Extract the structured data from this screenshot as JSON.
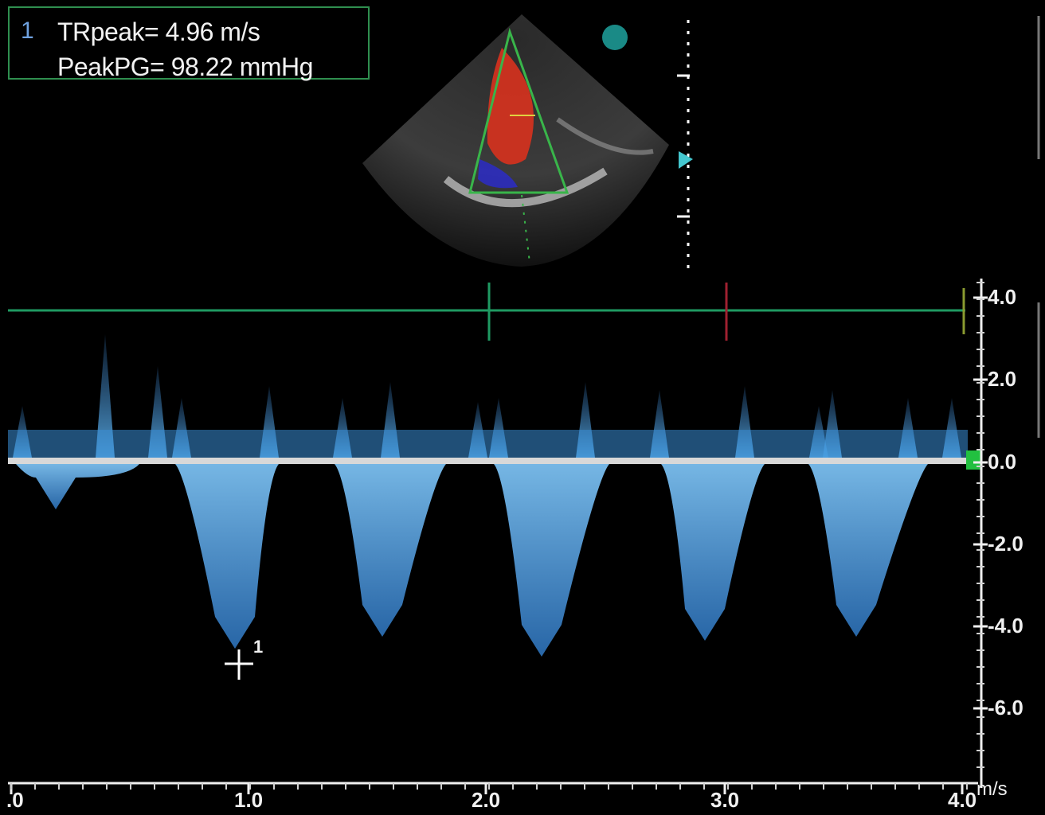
{
  "measurement": {
    "index": "1",
    "tr_peak_label": "TRpeak",
    "tr_peak_value": "4.96 m/s",
    "peak_pg_label": "PeakPG",
    "peak_pg_value": "98.22 mmHg"
  },
  "cursor_marker": "1",
  "velocity_axis": {
    "unit": "m/s",
    "ticks": [
      "4.0",
      "2.0",
      "0.0",
      "-2.0",
      "-4.0",
      "-6.0"
    ]
  },
  "time_axis": {
    "ticks": [
      ".0",
      "1.0",
      "2.0",
      "3.0",
      "4.0"
    ]
  },
  "colors": {
    "spectral": "#4fa6e8",
    "baseline": "#d8d8d8",
    "cursor_line": "#1f9a62",
    "color_flow": "#d8321e",
    "sector_outline": "#39b54a",
    "marker_dot": "#1a8a86"
  }
}
